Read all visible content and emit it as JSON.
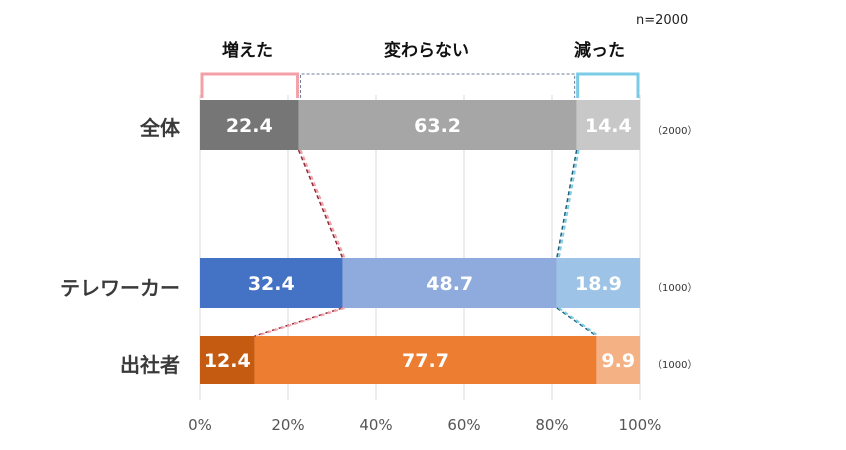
{
  "note": "n=2000",
  "categories_header": [
    "増えた",
    "変わらない",
    "減った"
  ],
  "chart_data": {
    "type": "bar",
    "orientation": "horizontal",
    "stacked": "100%",
    "categories": [
      "全体",
      "テレワーカー",
      "出社者"
    ],
    "sample_sizes": [
      "（2000）",
      "（1000）",
      "（1000）"
    ],
    "series": [
      {
        "name": "増えた",
        "values": [
          22.4,
          32.4,
          12.4
        ]
      },
      {
        "name": "変わらない",
        "values": [
          63.2,
          48.7,
          77.7
        ]
      },
      {
        "name": "減った",
        "values": [
          14.4,
          18.9,
          9.9
        ]
      }
    ],
    "xlim": [
      0,
      100
    ],
    "xticks": [
      "0%",
      "20%",
      "40%",
      "60%",
      "80%",
      "100%"
    ],
    "gridlines": true,
    "colors": {
      "全体": [
        "#767676",
        "#a6a6a6",
        "#c8c8c8"
      ],
      "テレワーカー": [
        "#4472c4",
        "#8faadc",
        "#9dc3e6"
      ],
      "出社者": [
        "#c55a11",
        "#ed7d31",
        "#f4b183"
      ]
    },
    "connector_colors": {
      "増えた": "#f4a0a8",
      "変わらない": "#6b7d96",
      "減った": "#7ccbe6"
    }
  }
}
